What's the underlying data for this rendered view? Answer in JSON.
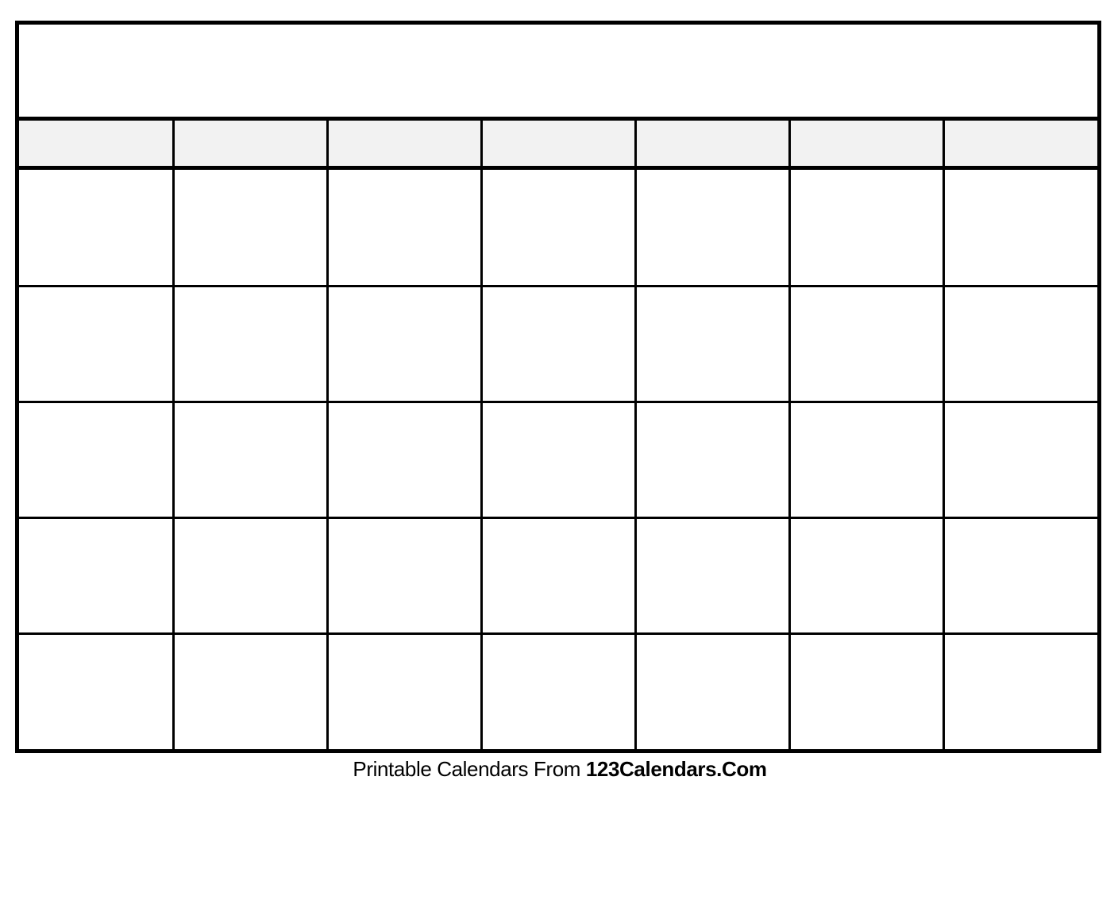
{
  "calendar": {
    "title": "",
    "weekday_headers": [
      "",
      "",
      "",
      "",
      "",
      "",
      ""
    ],
    "rows": 5,
    "columns": 7,
    "header_fill": "#f2f2f2"
  },
  "footer": {
    "prefix": "Printable Calendars From ",
    "brand": "123Calendars.Com"
  }
}
